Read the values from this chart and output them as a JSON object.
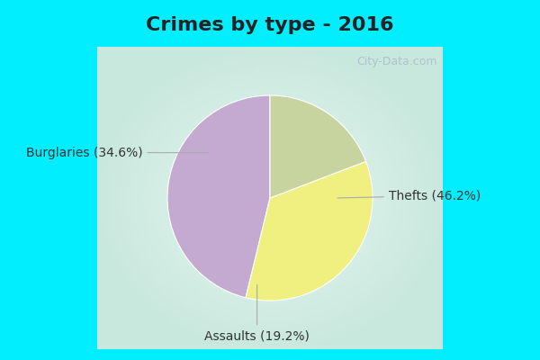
{
  "title": "Crimes by type - 2016",
  "slices": [
    {
      "label": "Thefts (46.2%)",
      "value": 46.2,
      "color": "#c4aad0"
    },
    {
      "label": "Burglaries (34.6%)",
      "value": 34.6,
      "color": "#f0f080"
    },
    {
      "label": "Assaults (19.2%)",
      "value": 19.2,
      "color": "#c8d4a0"
    }
  ],
  "border_color": "#00eeff",
  "bg_color_center": "#e8f8f0",
  "bg_color_edge": "#c0eee0",
  "title_fontsize": 16,
  "title_color": "#222222",
  "label_fontsize": 10,
  "watermark": "City-Data.com",
  "startangle": 90,
  "border_width": 18
}
